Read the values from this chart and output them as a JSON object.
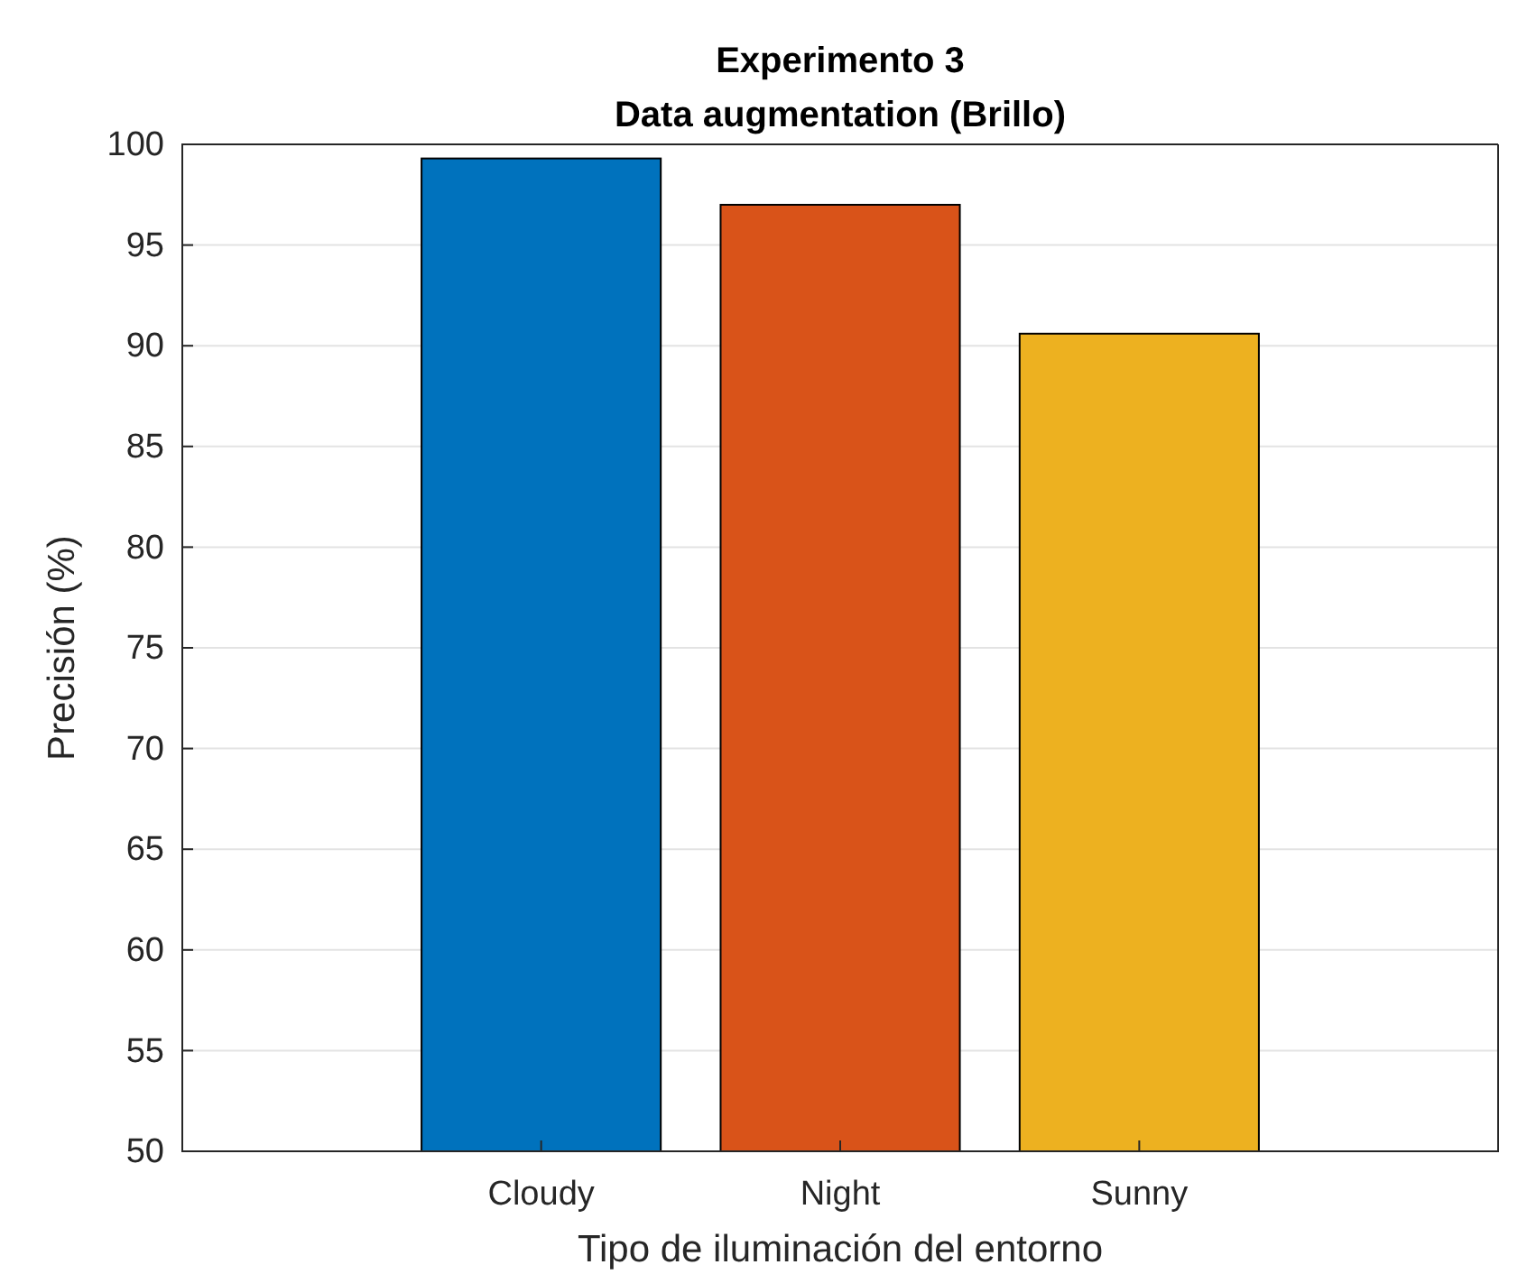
{
  "chart_data": {
    "type": "bar",
    "title": "Experimento 3",
    "subtitle": "Data augmentation (Brillo)",
    "xlabel": "Tipo de iluminación del entorno",
    "ylabel": "Precisión (%)",
    "categories": [
      "Cloudy",
      "Night",
      "Sunny"
    ],
    "values": [
      99.3,
      97.0,
      90.6
    ],
    "colors": [
      "#0072bd",
      "#d95319",
      "#edb120"
    ],
    "ylim": [
      50,
      100
    ],
    "yticks": [
      50,
      55,
      60,
      65,
      70,
      75,
      80,
      85,
      90,
      95,
      100
    ],
    "grid": "y"
  }
}
